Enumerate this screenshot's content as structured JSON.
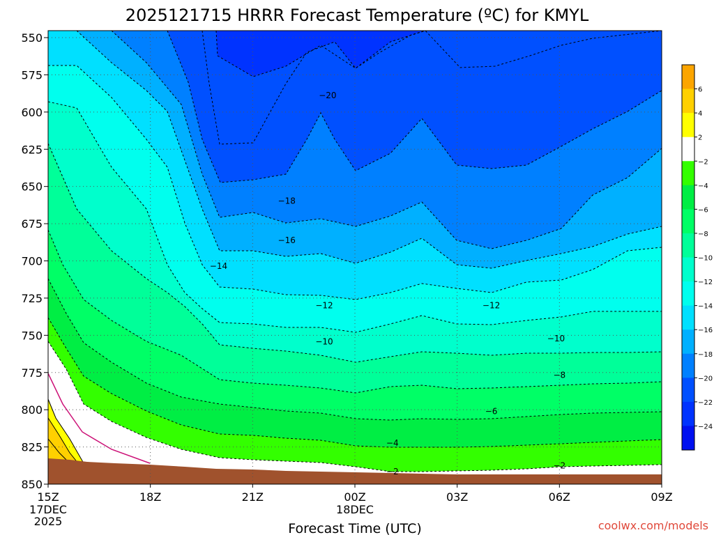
{
  "chart_data": {
    "type": "area",
    "title": "2025121715 HRRR Forecast Temperature (ºC) for KMYL",
    "xlabel": "Forecast Time (UTC)",
    "credit": "coolwx.com/models",
    "y_ticks": [
      "550",
      "575",
      "600",
      "625",
      "650",
      "675",
      "700",
      "725",
      "750",
      "775",
      "800",
      "825",
      "850"
    ],
    "x_ticks": [
      {
        "label": "15Z",
        "sub": [
          "17DEC",
          "2025"
        ]
      },
      {
        "label": "18Z",
        "sub": []
      },
      {
        "label": "21Z",
        "sub": []
      },
      {
        "label": "00Z",
        "sub": [
          "18DEC"
        ]
      },
      {
        "label": "03Z",
        "sub": []
      },
      {
        "label": "06Z",
        "sub": []
      },
      {
        "label": "09Z",
        "sub": []
      }
    ],
    "y_range": [
      550,
      850
    ],
    "x_range_hours": [
      0,
      18
    ],
    "grid": true,
    "colorbar": {
      "ticks": [
        "6",
        "4",
        "2",
        "−2",
        "−4",
        "−6",
        "−8",
        "−10",
        "−12",
        "−14",
        "−16",
        "−18",
        "−20",
        "−22",
        "−24"
      ],
      "colors": [
        "#fca500",
        "#ffd000",
        "#ffff00",
        "#ffffff",
        "#33ff00",
        "#00ee44",
        "#00ff66",
        "#00ff99",
        "#00ffcc",
        "#00ffee",
        "#00e0ff",
        "#00b0ff",
        "#0080ff",
        "#0050ff",
        "#0033ff",
        "#0010f0"
      ]
    },
    "contour_labels": [
      {
        "text": "−20",
        "x": 8.2,
        "p": 590
      },
      {
        "text": "−18",
        "x": 7.0,
        "p": 660
      },
      {
        "text": "−16",
        "x": 7.0,
        "p": 686
      },
      {
        "text": "−14",
        "x": 5.0,
        "p": 703
      },
      {
        "text": "−12",
        "x": 8.1,
        "p": 729
      },
      {
        "text": "−12",
        "x": 13.0,
        "p": 729
      },
      {
        "text": "−10",
        "x": 8.1,
        "p": 753
      },
      {
        "text": "−10",
        "x": 14.9,
        "p": 751
      },
      {
        "text": "−8",
        "x": 15.0,
        "p": 775
      },
      {
        "text": "−6",
        "x": 13.0,
        "p": 799
      },
      {
        "text": "−4",
        "x": 10.1,
        "p": 820
      },
      {
        "text": "−2",
        "x": 10.1,
        "p": 839
      },
      {
        "text": "−2",
        "x": 15.0,
        "p": 835
      }
    ],
    "colors": {
      "terrain": "#a0522d",
      "freezing_line": "#cc1177",
      "border": "#000000"
    }
  }
}
